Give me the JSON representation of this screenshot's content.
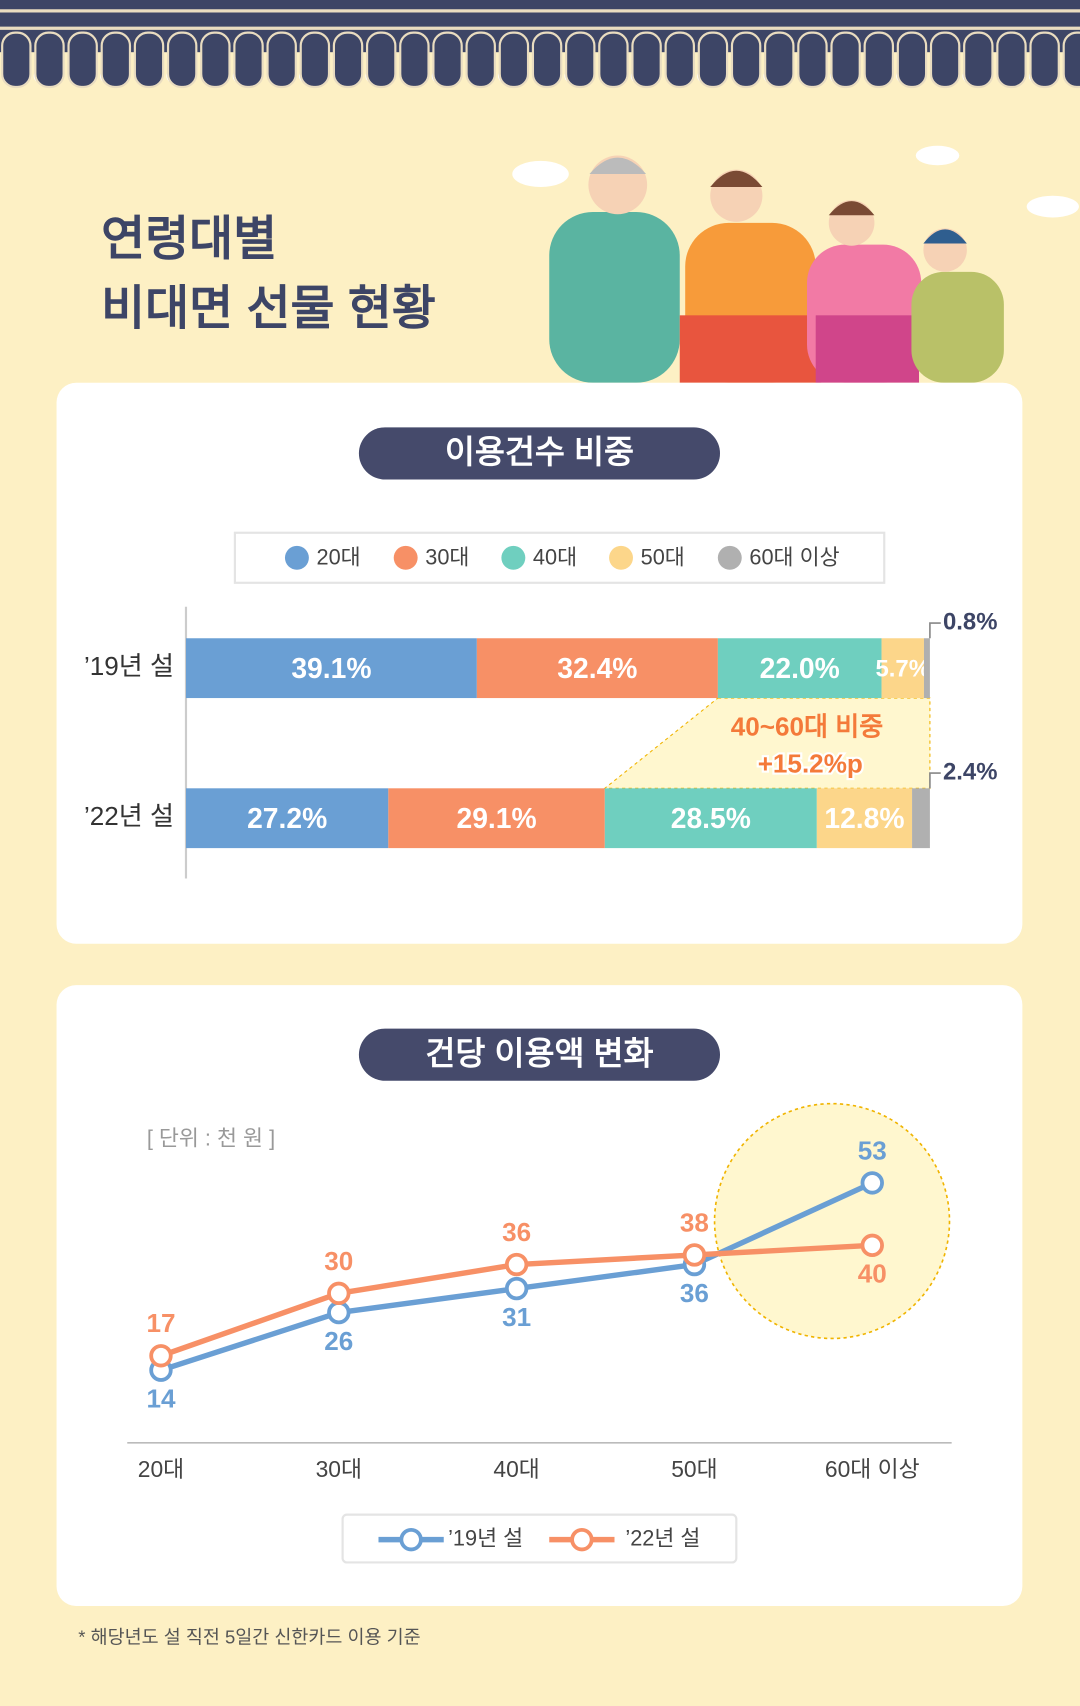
{
  "header": {
    "title": [
      "연령대별",
      "비대면 선물 현황"
    ]
  },
  "chart_data": [
    {
      "type": "stacked-bar",
      "orientation": "horizontal",
      "title": "이용건수 비중",
      "categories": [
        "’19년 설",
        "’22년 설"
      ],
      "xlim": [
        0,
        100
      ],
      "series": [
        {
          "name": "20대",
          "color": "#6a9fd4",
          "values": [
            39.1,
            27.2
          ],
          "value_labels": [
            "39.1%",
            "27.2%"
          ]
        },
        {
          "name": "30대",
          "color": "#f79066",
          "values": [
            32.4,
            29.1
          ],
          "value_labels": [
            "32.4%",
            "29.1%"
          ]
        },
        {
          "name": "40대",
          "color": "#6fcfbf",
          "values": [
            22.0,
            28.5
          ],
          "value_labels": [
            "22.0%",
            "28.5%"
          ]
        },
        {
          "name": "50대",
          "color": "#fcd68a",
          "values": [
            5.7,
            12.8
          ],
          "value_labels": [
            "5.7%",
            "12.8%"
          ]
        },
        {
          "name": "60대 이상",
          "color": "#b0b0b0",
          "values": [
            0.8,
            2.4
          ],
          "value_labels": [
            "0.8%",
            "2.4%"
          ]
        }
      ],
      "annotation": [
        "40~60대 비중",
        "+15.2%p"
      ]
    },
    {
      "type": "line",
      "title": "건당 이용액 변화",
      "unit": "[ 단위 : 천 원 ]",
      "categories": [
        "20대",
        "30대",
        "40대",
        "50대",
        "60대 이상"
      ],
      "ylim": [
        0,
        60
      ],
      "series": [
        {
          "name": "’19년 설",
          "color": "#6a9fd4",
          "values": [
            14,
            26,
            31,
            36,
            53
          ]
        },
        {
          "name": "’22년 설",
          "color": "#f79066",
          "values": [
            17,
            30,
            36,
            38,
            40
          ]
        }
      ]
    }
  ],
  "footnote": "* 해당년도 설 직전 5일간 신한카드 이용 기준"
}
